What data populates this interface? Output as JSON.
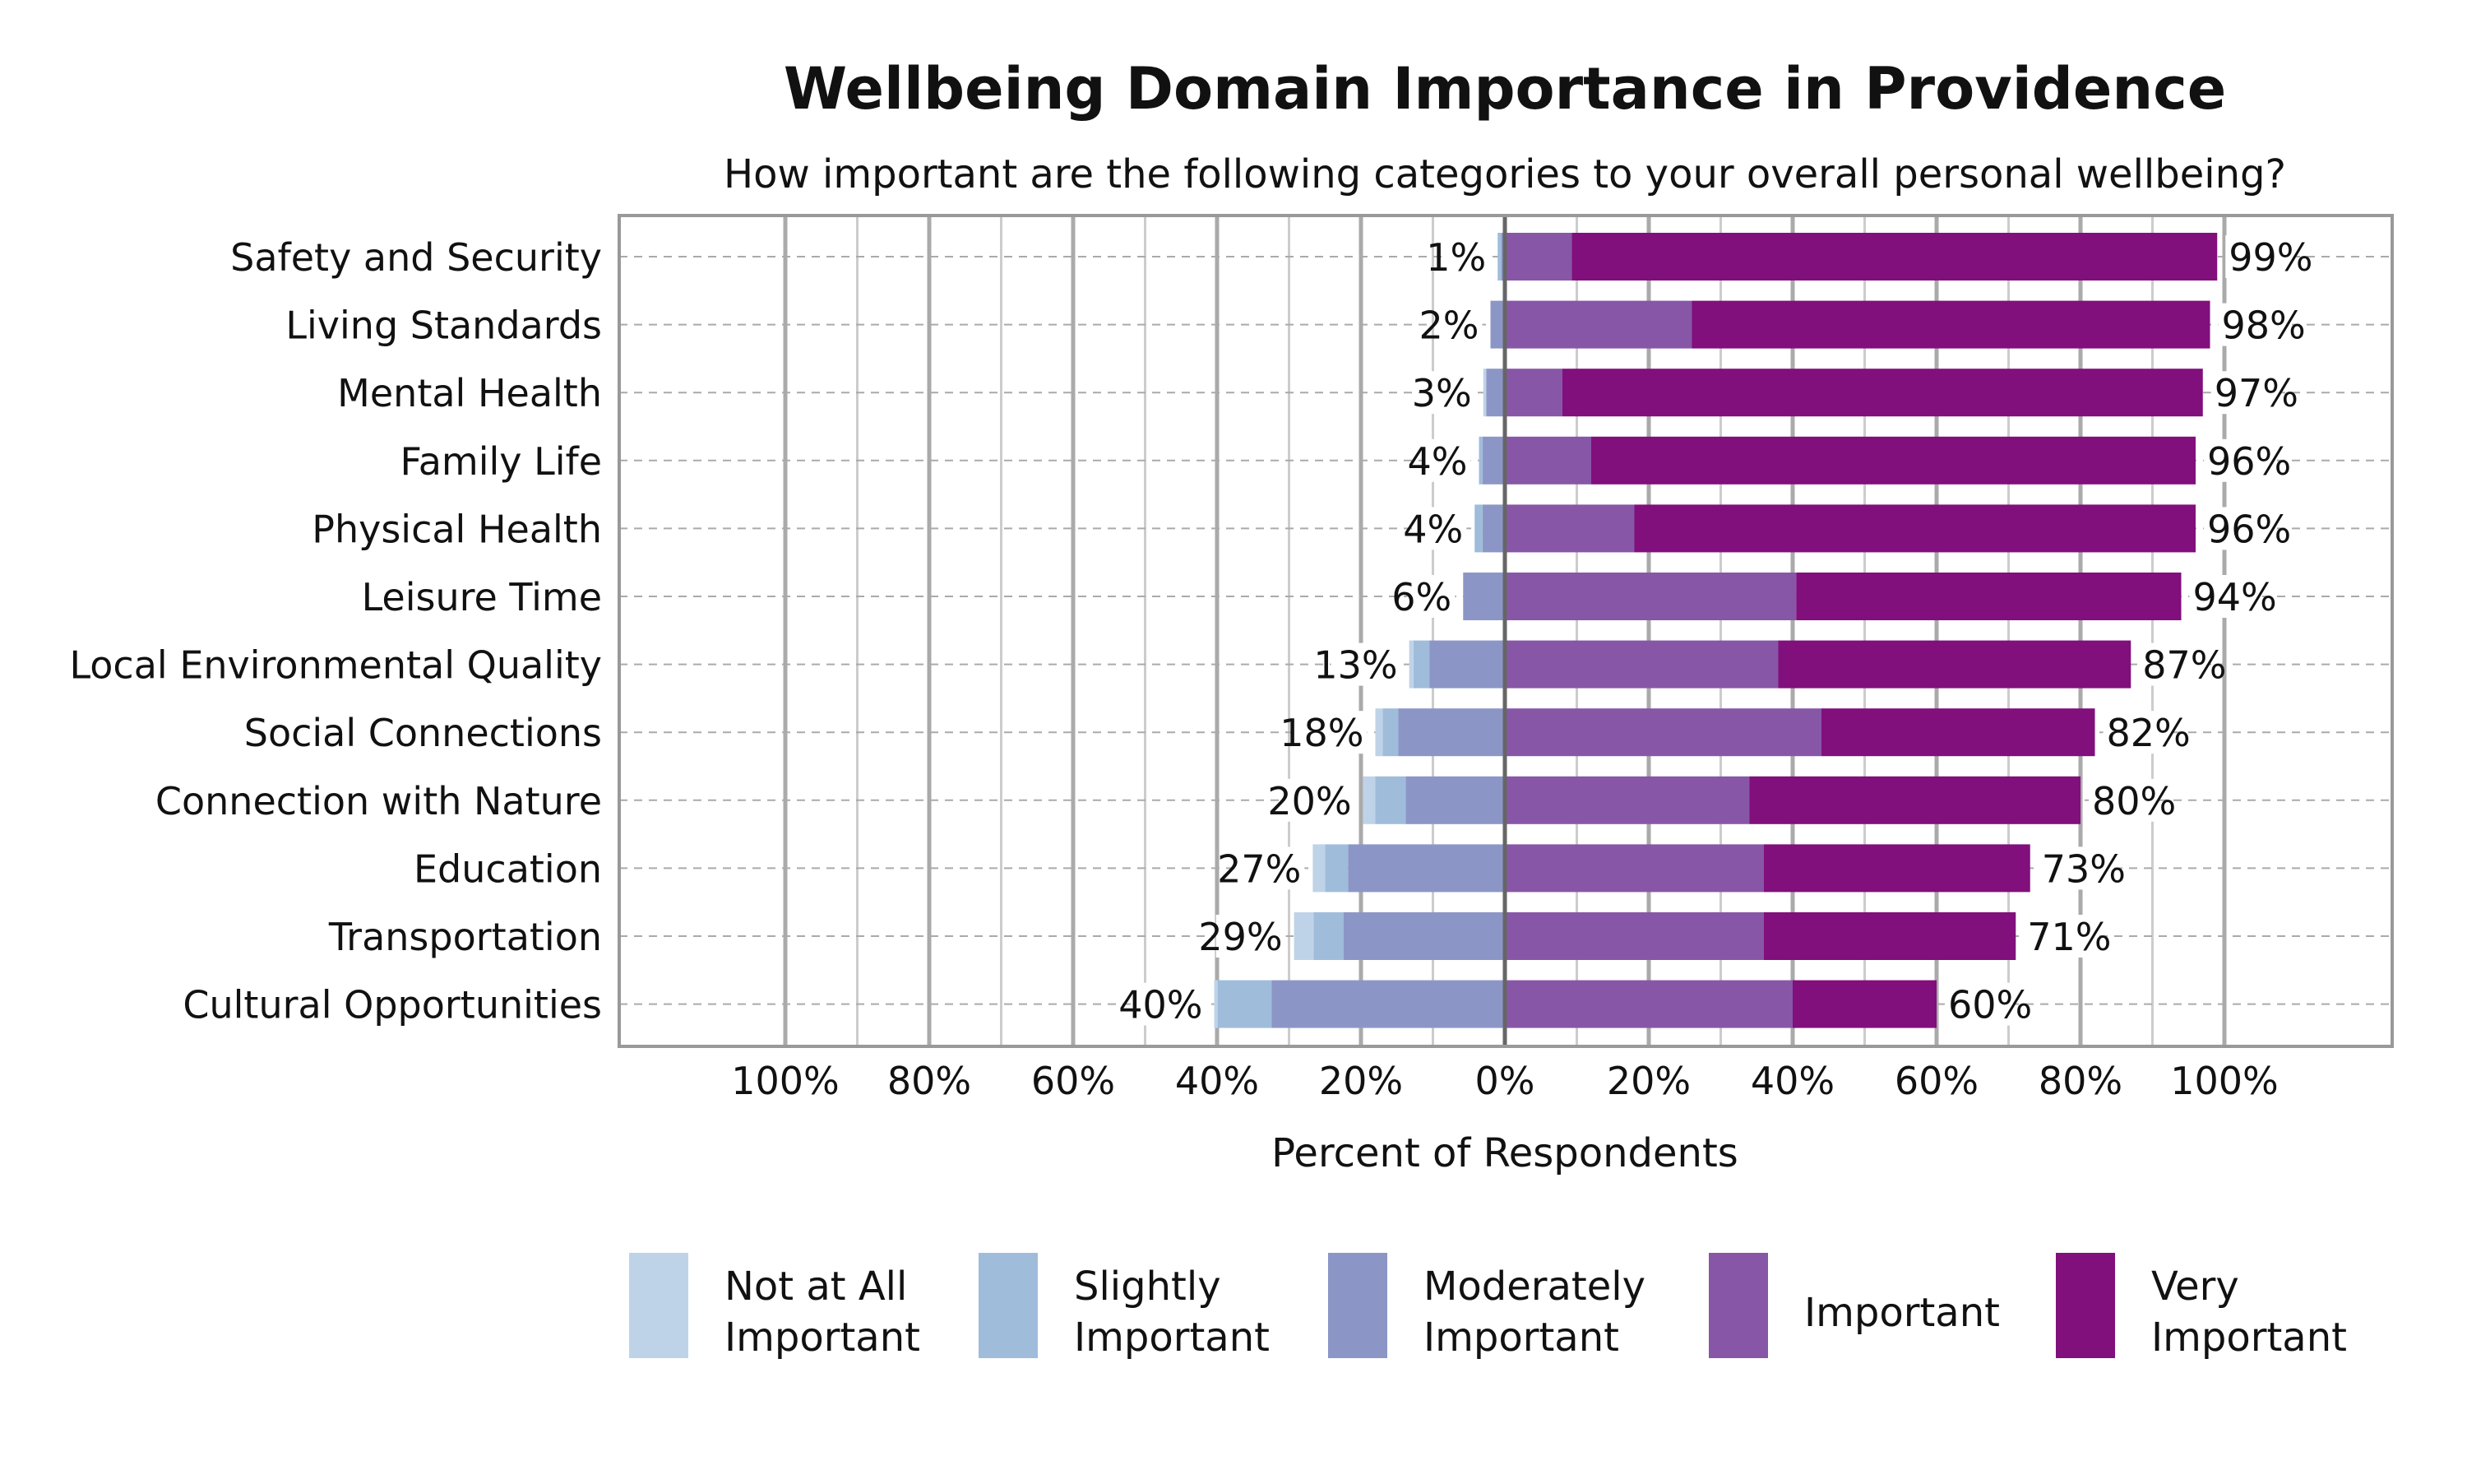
{
  "chart_data": {
    "type": "bar",
    "orientation": "horizontal-diverging",
    "title": "Wellbeing Domain Importance in Providence",
    "subtitle": "How important are the following categories to your overall personal wellbeing?",
    "xlabel": "Percent of Respondents",
    "xlim": [
      -100,
      100
    ],
    "xticks": [
      "100%",
      "80%",
      "60%",
      "40%",
      "20%",
      "0%",
      "20%",
      "40%",
      "60%",
      "80%",
      "100%"
    ],
    "grid": true,
    "legend_position": "bottom",
    "categories": [
      "Safety and Security",
      "Living Standards",
      "Mental Health",
      "Family Life",
      "Physical Health",
      "Leisure Time",
      "Local Environmental Quality",
      "Social Connections",
      "Connection with Nature",
      "Education",
      "Transportation",
      "Cultural Opportunities"
    ],
    "series": [
      {
        "name": "Not at All Important",
        "color": "#bfd3e8",
        "side": "negative",
        "values": [
          0,
          0,
          0.4,
          0,
          0,
          0,
          0.6,
          1,
          1.7,
          1.7,
          2.7,
          0.5
        ]
      },
      {
        "name": "Slightly Important",
        "color": "#9fbcdb",
        "side": "negative",
        "values": [
          0.5,
          0,
          0,
          0.5,
          1.1,
          0,
          2.2,
          2.2,
          4.2,
          3.2,
          4.2,
          7.5
        ]
      },
      {
        "name": "Moderately Important",
        "color": "#8c96c6",
        "side": "negative",
        "values": [
          0.5,
          2,
          2.6,
          3.1,
          3.1,
          5.8,
          10.5,
          14.8,
          13.8,
          21.8,
          22.4,
          32.4
        ]
      },
      {
        "name": "Important",
        "color": "#8856a7",
        "side": "positive",
        "values": [
          9.3,
          26,
          8,
          12,
          18,
          40.5,
          38,
          44,
          34,
          36,
          36,
          40
        ]
      },
      {
        "name": "Very Important",
        "color": "#810f7c",
        "side": "positive",
        "values": [
          89.7,
          72,
          89,
          84,
          78,
          53.5,
          49,
          38,
          46,
          37,
          35,
          20
        ]
      }
    ],
    "left_totals": [
      "1%",
      "2%",
      "3%",
      "4%",
      "4%",
      "6%",
      "13%",
      "18%",
      "20%",
      "27%",
      "29%",
      "40%"
    ],
    "right_totals": [
      "99%",
      "98%",
      "97%",
      "96%",
      "96%",
      "94%",
      "87%",
      "82%",
      "80%",
      "73%",
      "71%",
      "60%"
    ],
    "legend": [
      {
        "lines": [
          "Not at All",
          "Important"
        ]
      },
      {
        "lines": [
          "Slightly",
          "Important"
        ]
      },
      {
        "lines": [
          "Moderately",
          "Important"
        ]
      },
      {
        "lines": [
          "Important"
        ]
      },
      {
        "lines": [
          "Very",
          "Important"
        ]
      }
    ]
  }
}
